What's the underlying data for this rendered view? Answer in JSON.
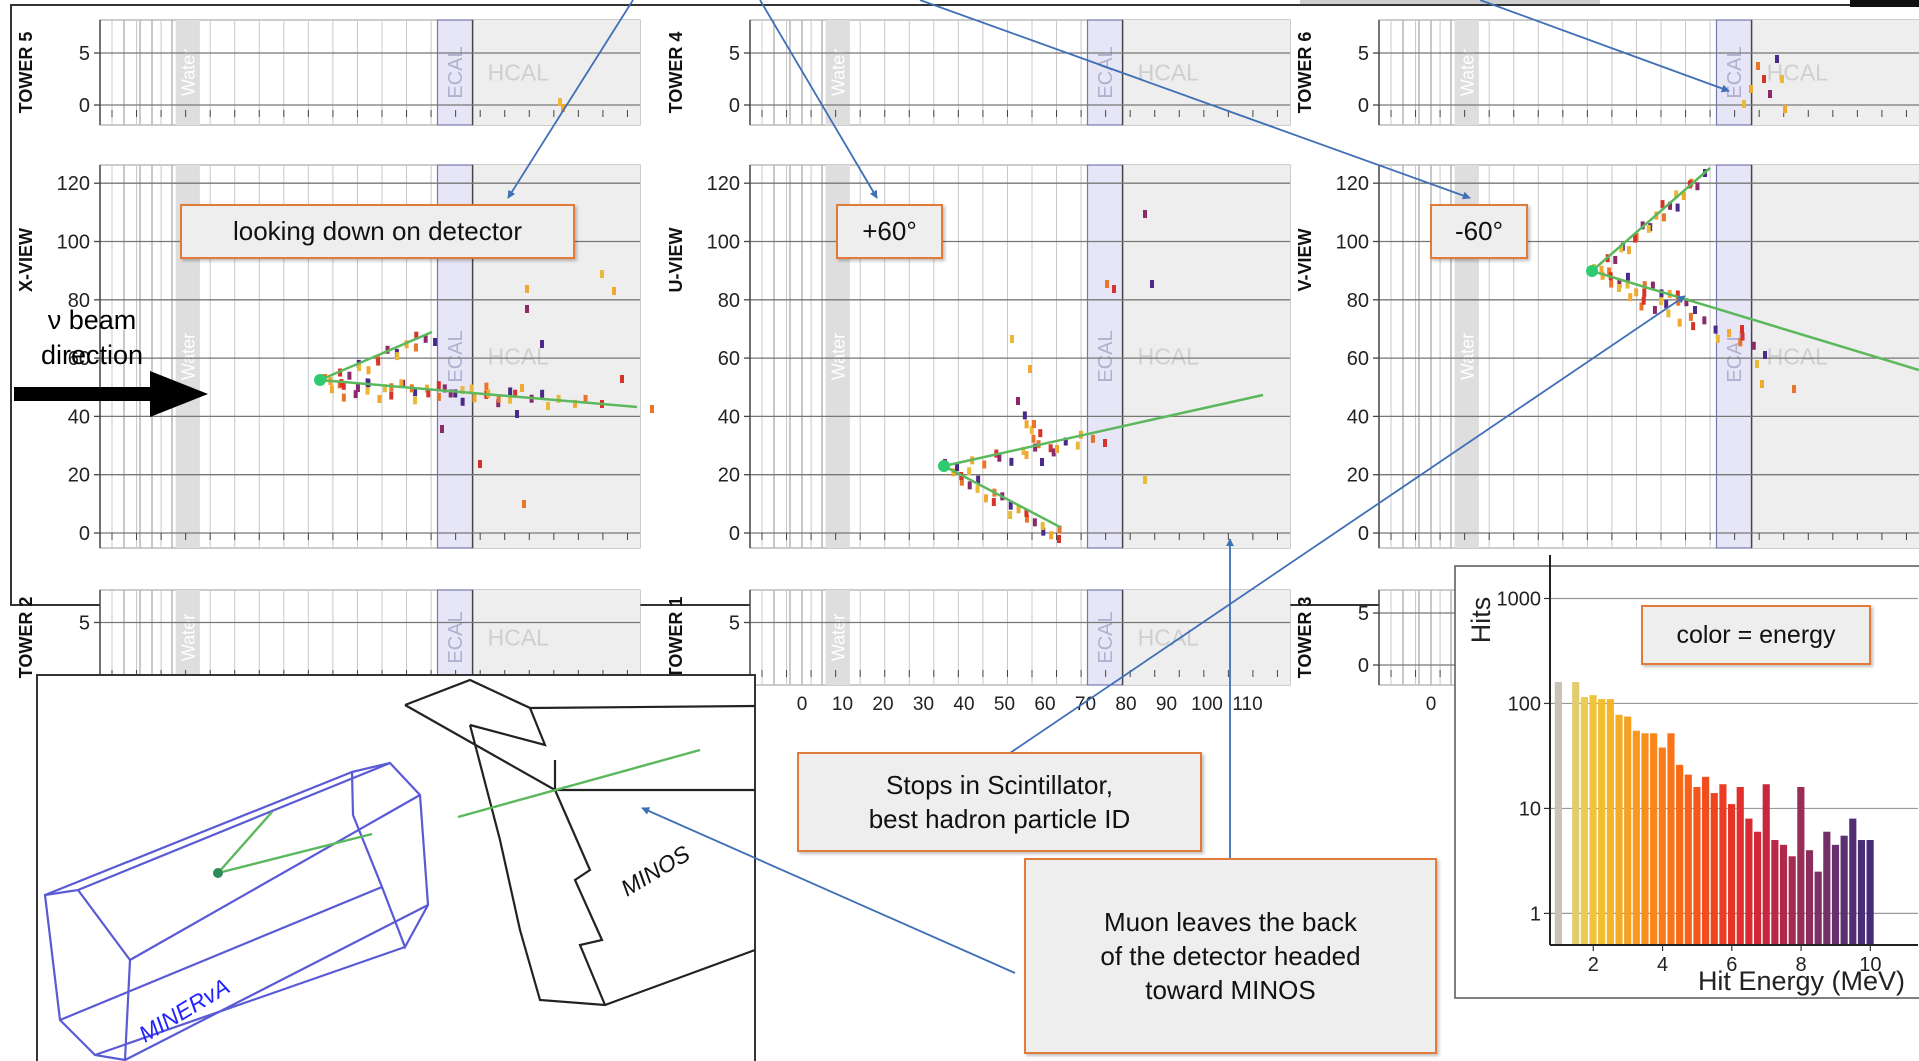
{
  "event_display": {
    "panels": [
      {
        "id": "tower5",
        "label": "TOWER 5",
        "kind": "tower",
        "yticks": [
          "0",
          "5"
        ],
        "show_xticks": false
      },
      {
        "id": "tower4",
        "label": "TOWER 4",
        "kind": "tower",
        "yticks": [
          "0",
          "5"
        ],
        "show_xticks": false
      },
      {
        "id": "tower6",
        "label": "TOWER 6",
        "kind": "tower",
        "yticks": [
          "0",
          "5"
        ],
        "show_xticks": false
      },
      {
        "id": "xview",
        "label": "X-VIEW",
        "kind": "view",
        "yticks": [
          "0",
          "20",
          "40",
          "60",
          "80",
          "100",
          "120"
        ],
        "show_xticks": false
      },
      {
        "id": "uview",
        "label": "U-VIEW",
        "kind": "view",
        "yticks": [
          "0",
          "20",
          "40",
          "60",
          "80",
          "100",
          "120"
        ],
        "show_xticks": false
      },
      {
        "id": "vview",
        "label": "V-VIEW",
        "kind": "view",
        "yticks": [
          "0",
          "20",
          "40",
          "60",
          "80",
          "100",
          "120"
        ],
        "show_xticks": false
      },
      {
        "id": "tower2",
        "label": "TOWER 2",
        "kind": "tower",
        "yticks": [
          "5"
        ],
        "show_xticks": false
      },
      {
        "id": "tower1",
        "label": "TOWER 1",
        "kind": "tower",
        "yticks": [
          "5"
        ],
        "show_xticks": true
      },
      {
        "id": "tower3",
        "label": "TOWER 3",
        "kind": "tower",
        "yticks": [
          "0",
          "5"
        ],
        "show_xticks": true
      }
    ],
    "region_labels": {
      "water": "Water",
      "ecal": "ECAL",
      "hcal": "HCAL"
    },
    "xtick_labels": [
      "0",
      "10",
      "20",
      "30",
      "40",
      "50",
      "60",
      "70",
      "80",
      "90",
      "100",
      "110"
    ],
    "colors": {
      "ecal": "#e6e6f6",
      "hcal": "#eeeeee",
      "water": "#dedede",
      "track": "#5cb85c",
      "vertex": "#2ecc71",
      "grid": "#c8c8c8"
    }
  },
  "callouts": {
    "looking_down": "looking down on detector",
    "plus60": "+60°",
    "minus60": "-60°",
    "stops": "Stops in Scintillator,\nbest hadron particle ID",
    "muon": "Muon leaves the back\nof the detector headed\ntoward MINOS",
    "color_energy": "color = energy"
  },
  "beam_label": "ν beam\ndirection",
  "detector_3d": {
    "minerva_label": "MINERvA",
    "minos_label": "MINOS"
  },
  "chart_data": {
    "type": "bar",
    "title": "",
    "xlabel": "Hit Energy (MeV)",
    "ylabel": "Hits",
    "yscale": "log",
    "ylim": [
      0.5,
      1500
    ],
    "xlim": [
      0.75,
      11
    ],
    "yticks": [
      1,
      10,
      100,
      1000
    ],
    "xticks": [
      2,
      4,
      6,
      8,
      10
    ],
    "grid": true,
    "bin_width": 0.25,
    "x": [
      1,
      1.25,
      1.5,
      1.75,
      2,
      2.25,
      2.5,
      2.75,
      3,
      3.25,
      3.5,
      3.75,
      4,
      4.25,
      4.5,
      4.75,
      5,
      5.25,
      5.5,
      5.75,
      6,
      6.25,
      6.5,
      6.75,
      7,
      7.25,
      7.5,
      7.75,
      8,
      8.25,
      8.5,
      8.75,
      9,
      9.25,
      9.5,
      9.75,
      10
    ],
    "values": [
      160,
      0,
      160,
      115,
      120,
      110,
      110,
      78,
      75,
      55,
      52,
      52,
      38,
      52,
      26,
      21,
      16,
      20,
      14,
      17,
      11,
      16,
      8,
      6,
      17,
      5,
      4.5,
      3.5,
      16,
      4,
      2.5,
      6,
      4.5,
      5.5,
      8,
      5,
      5
    ],
    "colors": [
      "#c9c3b5",
      "#d2c9a8",
      "#e2cd6e",
      "#ebcb52",
      "#f0c43a",
      "#f3bd30",
      "#f5b42a",
      "#f6ab25",
      "#f7a122",
      "#f8981e",
      "#f98f1b",
      "#f98619",
      "#fa7c18",
      "#fa7317",
      "#f96a17",
      "#f76118",
      "#f5571a",
      "#f24e1c",
      "#ef451f",
      "#eb3d23",
      "#e63527",
      "#e02f2c",
      "#d82a32",
      "#d02838",
      "#c6273f",
      "#bb2845",
      "#b0294c",
      "#a42b52",
      "#982d58",
      "#8b2e5e",
      "#7e2f63",
      "#722f68",
      "#672f6d",
      "#5c2f71",
      "#532e74",
      "#4b2d77",
      "#452b79"
    ]
  }
}
